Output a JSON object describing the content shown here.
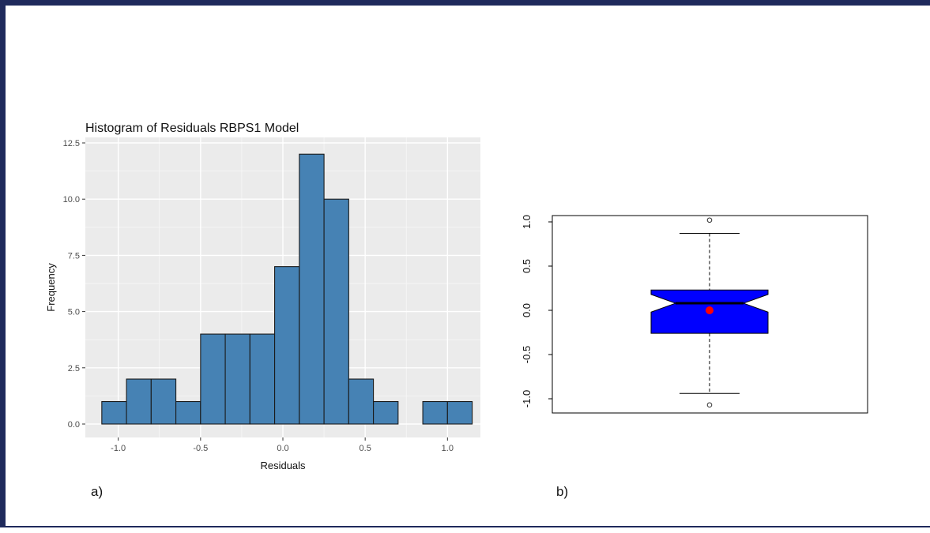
{
  "chart_data": [
    {
      "type": "bar",
      "title": "Histogram of Residuals RBPS1 Model",
      "xlabel": "Residuals",
      "ylabel": "Frequency",
      "bin_edges": [
        -1.1,
        -0.95,
        -0.8,
        -0.65,
        -0.5,
        -0.35,
        -0.2,
        -0.05,
        0.1,
        0.25,
        0.4,
        0.55,
        0.7,
        0.85,
        1.0,
        1.15
      ],
      "values": [
        1,
        2,
        2,
        1,
        4,
        4,
        4,
        7,
        12,
        10,
        2,
        1,
        0,
        1,
        1
      ],
      "xlim": [
        -1.2,
        1.2
      ],
      "ylim": [
        0,
        12.5
      ],
      "x_ticks": [
        -1.0,
        -0.5,
        0.0,
        0.5,
        1.0
      ],
      "x_tick_labels": [
        "-1.0",
        "-0.5",
        "0.0",
        "0.5",
        "1.0"
      ],
      "y_ticks": [
        0,
        2.5,
        5,
        7.5,
        10,
        12.5
      ],
      "y_tick_labels": [
        "0.0",
        "2.5",
        "5.0",
        "7.5",
        "10.0",
        "12.5"
      ],
      "grid": true,
      "bar_color": "#4682b4",
      "panel_background": "#ebebeb"
    },
    {
      "type": "boxplot",
      "notched": true,
      "whisker_low": -0.94,
      "q1": -0.26,
      "median": 0.08,
      "q3": 0.23,
      "whisker_high": 0.87,
      "notch_low": -0.02,
      "notch_high": 0.18,
      "mean": 0.0,
      "outliers": [
        1.02,
        -1.07
      ],
      "ylim": [
        -1.15,
        1.1
      ],
      "y_ticks": [
        -1.0,
        -0.5,
        0.0,
        0.5,
        1.0
      ],
      "y_tick_labels": [
        "-1.0",
        "-0.5",
        "0.0",
        "0.5",
        "1.0"
      ],
      "box_color": "#0000ff",
      "mean_color": "#ff0000"
    }
  ],
  "panel_labels": {
    "a": "a)",
    "b": "b)"
  }
}
